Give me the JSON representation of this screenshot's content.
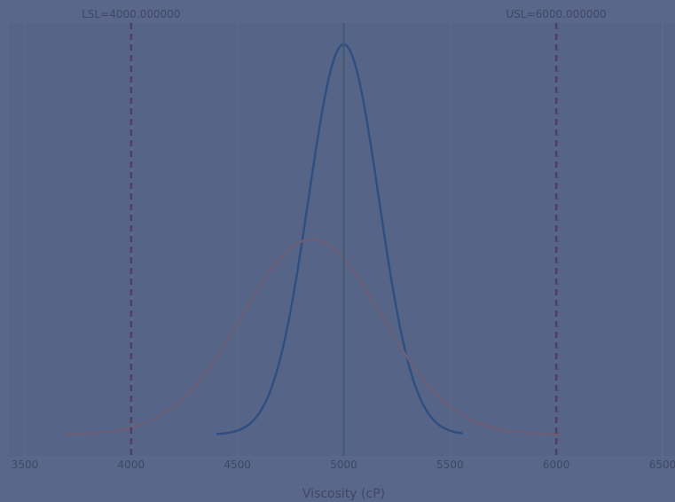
{
  "chart_data": {
    "type": "line",
    "xlabel": "Viscosity (cP)",
    "xlim": [
      3500,
      6500
    ],
    "x_ticks": [
      3500,
      4000,
      4500,
      5000,
      5500,
      6000,
      6500
    ],
    "x_tick_labels": [
      "3500",
      "4000",
      "4500",
      "5000",
      "5500",
      "6000",
      "6500"
    ],
    "y_ticks_visible": false,
    "grid": "vertical",
    "spec_limits": {
      "lsl": {
        "value": 4000,
        "label": "LSL=4000.000000",
        "color": "#4f3f63"
      },
      "usl": {
        "value": 6000,
        "label": "USL=6000.000000",
        "color": "#4f3f63"
      }
    },
    "target": {
      "value": 5000,
      "color": "#3d5a6f"
    },
    "series": [
      {
        "curve": "normal",
        "mean": 5000,
        "sd": 165,
        "x_range": [
          4400,
          5560
        ],
        "color": "#2f4f82"
      },
      {
        "curve": "normal",
        "mean": 4850,
        "sd": 330,
        "x_range": [
          3690,
          6020
        ],
        "color": "#6a5e78"
      }
    ]
  },
  "colors": {
    "background": "#5a6789",
    "plot_area": "#566587",
    "grid": "#5d6a8c",
    "text": "#3c4866"
  }
}
